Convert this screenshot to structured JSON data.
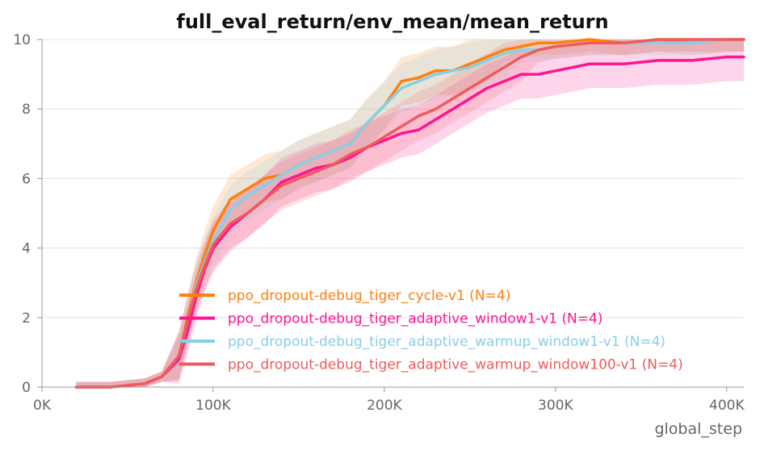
{
  "chart_data": {
    "type": "line",
    "title": "full_eval_return/env_mean/mean_return",
    "xlabel": "global_step",
    "ylabel": "",
    "xlim": [
      0,
      410000
    ],
    "ylim": [
      0,
      10
    ],
    "x_ticks": [
      0,
      100000,
      200000,
      300000,
      400000
    ],
    "x_tick_labels": [
      "0K",
      "100K",
      "200K",
      "300K",
      "400K"
    ],
    "y_ticks": [
      0,
      2,
      4,
      6,
      8,
      10
    ],
    "y_tick_labels": [
      "0",
      "2",
      "4",
      "6",
      "8",
      "10"
    ],
    "grid": true,
    "legend_position": "center-left",
    "series": [
      {
        "name": "ppo_dropout-debug_tiger_cycle-v1 (N=4)",
        "color": "#ff7f0e",
        "x": [
          20000,
          40000,
          60000,
          70000,
          80000,
          85000,
          90000,
          95000,
          100000,
          110000,
          120000,
          130000,
          140000,
          150000,
          160000,
          170000,
          180000,
          190000,
          200000,
          210000,
          220000,
          230000,
          240000,
          250000,
          260000,
          270000,
          280000,
          290000,
          300000,
          320000,
          340000,
          360000,
          380000,
          400000,
          410000
        ],
        "y": [
          0,
          0,
          0.1,
          0.3,
          0.9,
          2.0,
          3.0,
          3.8,
          4.5,
          5.4,
          5.7,
          6.0,
          6.1,
          6.4,
          6.6,
          6.8,
          7.0,
          7.6,
          8.1,
          8.8,
          8.9,
          9.1,
          9.1,
          9.3,
          9.5,
          9.7,
          9.8,
          9.9,
          9.9,
          10.0,
          9.9,
          10.0,
          9.9,
          10.0,
          10.0
        ]
      },
      {
        "name": "ppo_dropout-debug_tiger_adaptive_window1-v1 (N=4)",
        "color": "#ff1493",
        "x": [
          20000,
          40000,
          60000,
          70000,
          80000,
          85000,
          90000,
          95000,
          100000,
          110000,
          120000,
          130000,
          140000,
          150000,
          160000,
          170000,
          180000,
          190000,
          200000,
          210000,
          220000,
          230000,
          240000,
          250000,
          260000,
          270000,
          280000,
          290000,
          300000,
          320000,
          340000,
          360000,
          380000,
          400000,
          410000
        ],
        "y": [
          0,
          0,
          0.1,
          0.3,
          0.8,
          1.6,
          2.6,
          3.4,
          4.0,
          4.6,
          5.0,
          5.4,
          5.9,
          6.1,
          6.3,
          6.4,
          6.6,
          6.9,
          7.1,
          7.3,
          7.4,
          7.7,
          8.0,
          8.3,
          8.6,
          8.8,
          9.0,
          9.0,
          9.1,
          9.3,
          9.3,
          9.4,
          9.4,
          9.5,
          9.5
        ]
      },
      {
        "name": "ppo_dropout-debug_tiger_adaptive_warmup_window1-v1 (N=4)",
        "color": "#87cfe8",
        "x": [
          20000,
          40000,
          60000,
          70000,
          80000,
          85000,
          90000,
          95000,
          100000,
          110000,
          120000,
          130000,
          140000,
          150000,
          160000,
          170000,
          180000,
          190000,
          200000,
          210000,
          220000,
          230000,
          240000,
          250000,
          260000,
          270000,
          280000,
          290000,
          300000,
          320000,
          340000,
          360000,
          380000,
          400000,
          410000
        ],
        "y": [
          0,
          0,
          0.1,
          0.3,
          0.9,
          1.9,
          2.9,
          3.6,
          4.2,
          5.1,
          5.5,
          5.8,
          6.1,
          6.4,
          6.6,
          6.8,
          7.0,
          7.6,
          8.1,
          8.6,
          8.8,
          9.0,
          9.1,
          9.2,
          9.4,
          9.6,
          9.7,
          9.7,
          9.8,
          9.9,
          9.9,
          9.9,
          9.9,
          10.0,
          10.0
        ]
      },
      {
        "name": "ppo_dropout-debug_tiger_adaptive_warmup_window100-v1 (N=4)",
        "color": "#ef5b5b",
        "x": [
          20000,
          40000,
          60000,
          70000,
          80000,
          85000,
          90000,
          95000,
          100000,
          110000,
          120000,
          130000,
          140000,
          150000,
          160000,
          170000,
          180000,
          190000,
          200000,
          210000,
          220000,
          230000,
          240000,
          250000,
          260000,
          270000,
          280000,
          290000,
          300000,
          320000,
          340000,
          360000,
          380000,
          400000,
          410000
        ],
        "y": [
          0,
          0,
          0.1,
          0.3,
          0.9,
          1.9,
          2.8,
          3.5,
          4.1,
          4.7,
          5.0,
          5.4,
          5.8,
          6.0,
          6.2,
          6.4,
          6.7,
          6.9,
          7.2,
          7.5,
          7.8,
          8.0,
          8.3,
          8.6,
          8.9,
          9.2,
          9.5,
          9.7,
          9.8,
          9.9,
          9.9,
          10.0,
          10.0,
          10.0,
          10.0
        ]
      }
    ]
  }
}
